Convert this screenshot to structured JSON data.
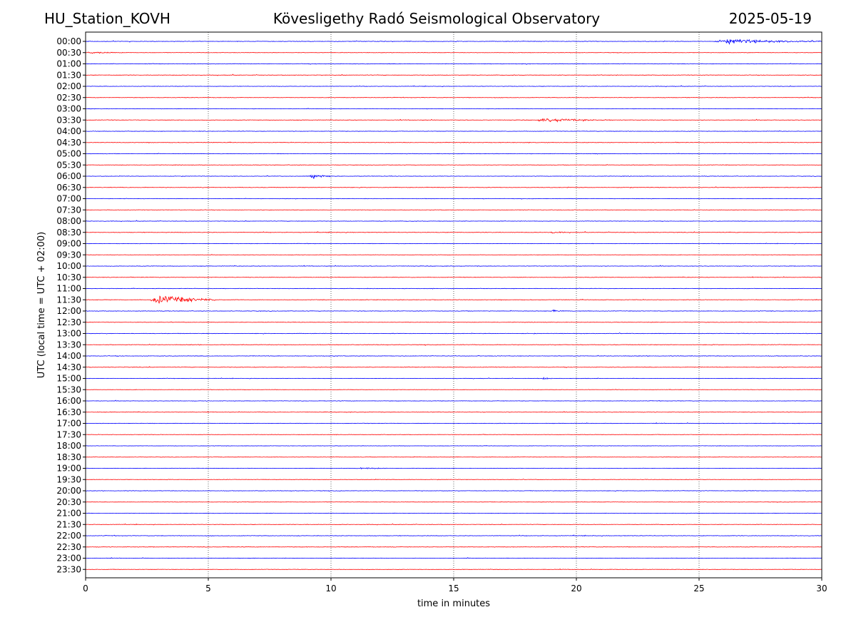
{
  "header": {
    "station": "HU_Station_KOVH",
    "title": "Kövesligethy Radó Seismological Observatory",
    "date": "2025-05-19"
  },
  "chart_data": {
    "type": "line",
    "description_type": "helicorder",
    "title": "Kövesligethy Radó Seismological Observatory",
    "xlabel": "time in minutes",
    "ylabel": "UTC (local time = UTC + 02:00)",
    "xlim": [
      0,
      30
    ],
    "x_ticks": [
      0,
      5,
      10,
      15,
      20,
      25,
      30
    ],
    "grid": "vertical dotted",
    "line_colors": [
      "#0000ff",
      "#ff0000"
    ],
    "rows": [
      "00:00",
      "00:30",
      "01:00",
      "01:30",
      "02:00",
      "02:30",
      "03:00",
      "03:30",
      "04:00",
      "04:30",
      "05:00",
      "05:30",
      "06:00",
      "06:30",
      "07:00",
      "07:30",
      "08:00",
      "08:30",
      "09:00",
      "09:30",
      "10:00",
      "10:30",
      "11:00",
      "11:30",
      "12:00",
      "12:30",
      "13:00",
      "13:30",
      "14:00",
      "14:30",
      "15:00",
      "15:30",
      "16:00",
      "16:30",
      "17:00",
      "17:30",
      "18:00",
      "18:30",
      "19:00",
      "19:30",
      "20:00",
      "20:30",
      "21:00",
      "21:30",
      "22:00",
      "22:30",
      "23:00",
      "23:30"
    ],
    "events": [
      {
        "row": "00:00",
        "start": 25.6,
        "end": 30,
        "amplitude": 0.6
      },
      {
        "row": "00:30",
        "start": 0,
        "end": 1.6,
        "amplitude": 0.25
      },
      {
        "row": "03:30",
        "start": 18.3,
        "end": 21.5,
        "amplitude": 0.45
      },
      {
        "row": "06:00",
        "start": 9.1,
        "end": 10.2,
        "amplitude": 0.55
      },
      {
        "row": "08:30",
        "start": 18.9,
        "end": 19.6,
        "amplitude": 0.25
      },
      {
        "row": "11:30",
        "start": 2.6,
        "end": 5.3,
        "amplitude": 1.3
      },
      {
        "row": "12:00",
        "start": 18.9,
        "end": 19.7,
        "amplitude": 0.22
      },
      {
        "row": "15:00",
        "start": 18.6,
        "end": 19.0,
        "amplitude": 0.45
      },
      {
        "row": "19:00",
        "start": 11.0,
        "end": 12.4,
        "amplitude": 0.2
      }
    ]
  }
}
